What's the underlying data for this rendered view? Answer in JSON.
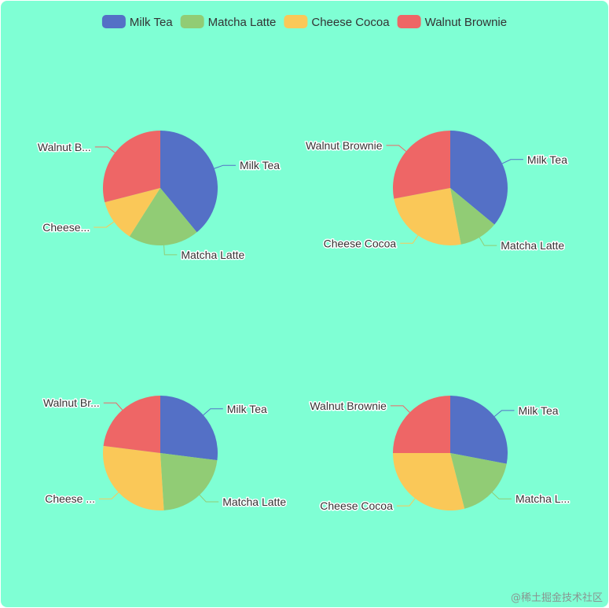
{
  "chart_data": {
    "type": "pie",
    "background_color": "#7FFFD4",
    "legend": {
      "placement": "top-center",
      "items": [
        {
          "name": "Milk Tea",
          "color": "#5470C6"
        },
        {
          "name": "Matcha Latte",
          "color": "#91CC75"
        },
        {
          "name": "Cheese Cocoa",
          "color": "#FAC858"
        },
        {
          "name": "Walnut Brownie",
          "color": "#EE6666"
        }
      ]
    },
    "pies": [
      {
        "position": "top-left",
        "slices": [
          {
            "name": "Milk Tea",
            "value": 39,
            "label": "Milk Tea"
          },
          {
            "name": "Matcha Latte",
            "value": 20,
            "label": "Matcha Latte"
          },
          {
            "name": "Cheese Cocoa",
            "value": 12,
            "label": "Cheese..."
          },
          {
            "name": "Walnut Brownie",
            "value": 29,
            "label": "Walnut B..."
          }
        ]
      },
      {
        "position": "top-right",
        "slices": [
          {
            "name": "Milk Tea",
            "value": 36,
            "label": "Milk Tea"
          },
          {
            "name": "Matcha Latte",
            "value": 11,
            "label": "Matcha Latte"
          },
          {
            "name": "Cheese Cocoa",
            "value": 25,
            "label": "Cheese Cocoa"
          },
          {
            "name": "Walnut Brownie",
            "value": 28,
            "label": "Walnut Brownie"
          }
        ]
      },
      {
        "position": "bottom-left",
        "slices": [
          {
            "name": "Milk Tea",
            "value": 27,
            "label": "Milk Tea"
          },
          {
            "name": "Matcha Latte",
            "value": 22,
            "label": "Matcha Latte"
          },
          {
            "name": "Cheese Cocoa",
            "value": 28,
            "label": "Cheese ..."
          },
          {
            "name": "Walnut Brownie",
            "value": 23,
            "label": "Walnut Br..."
          }
        ]
      },
      {
        "position": "bottom-right",
        "slices": [
          {
            "name": "Milk Tea",
            "value": 28,
            "label": "Milk Tea"
          },
          {
            "name": "Matcha Latte",
            "value": 18,
            "label": "Matcha L..."
          },
          {
            "name": "Cheese Cocoa",
            "value": 29,
            "label": "Cheese Cocoa"
          },
          {
            "name": "Walnut Brownie",
            "value": 25,
            "label": "Walnut Brownie"
          }
        ]
      }
    ]
  },
  "watermark": "@稀土掘金技术社区"
}
